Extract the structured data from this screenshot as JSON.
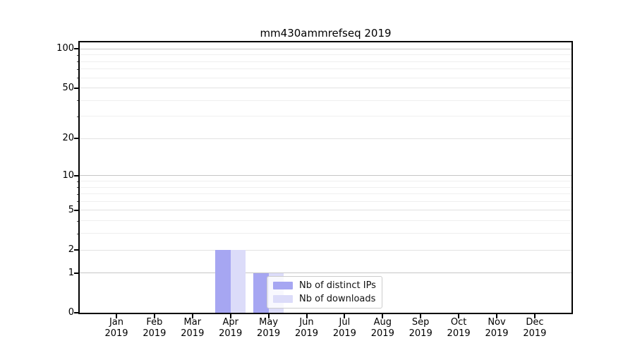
{
  "title": "mm430ammrefseq 2019",
  "chart_data": {
    "type": "bar",
    "title": "mm430ammrefseq 2019",
    "categories": [
      "Jan 2019",
      "Feb 2019",
      "Mar 2019",
      "Apr 2019",
      "May 2019",
      "Jun 2019",
      "Jul 2019",
      "Aug 2019",
      "Sep 2019",
      "Oct 2019",
      "Nov 2019",
      "Dec 2019"
    ],
    "series": [
      {
        "name": "Nb of distinct IPs",
        "color": "#a6a6f2",
        "values": [
          0,
          0,
          0,
          2,
          1,
          0,
          0,
          0,
          0,
          0,
          0,
          0
        ]
      },
      {
        "name": "Nb of downloads",
        "color": "#dcdcf9",
        "values": [
          0,
          0,
          0,
          2,
          1,
          0,
          0,
          0,
          0,
          0,
          0,
          0
        ]
      }
    ],
    "xlabel": "",
    "ylabel": "",
    "yscale": "log10(1+y)",
    "ylim": [
      0,
      112
    ],
    "yticks": [
      0,
      1,
      2,
      5,
      10,
      20,
      50,
      100
    ],
    "minor_yticks": [
      3,
      4,
      6,
      7,
      8,
      9,
      30,
      40,
      60,
      70,
      80,
      90
    ],
    "grid": "horizontal",
    "legend_position": "lower-center"
  }
}
